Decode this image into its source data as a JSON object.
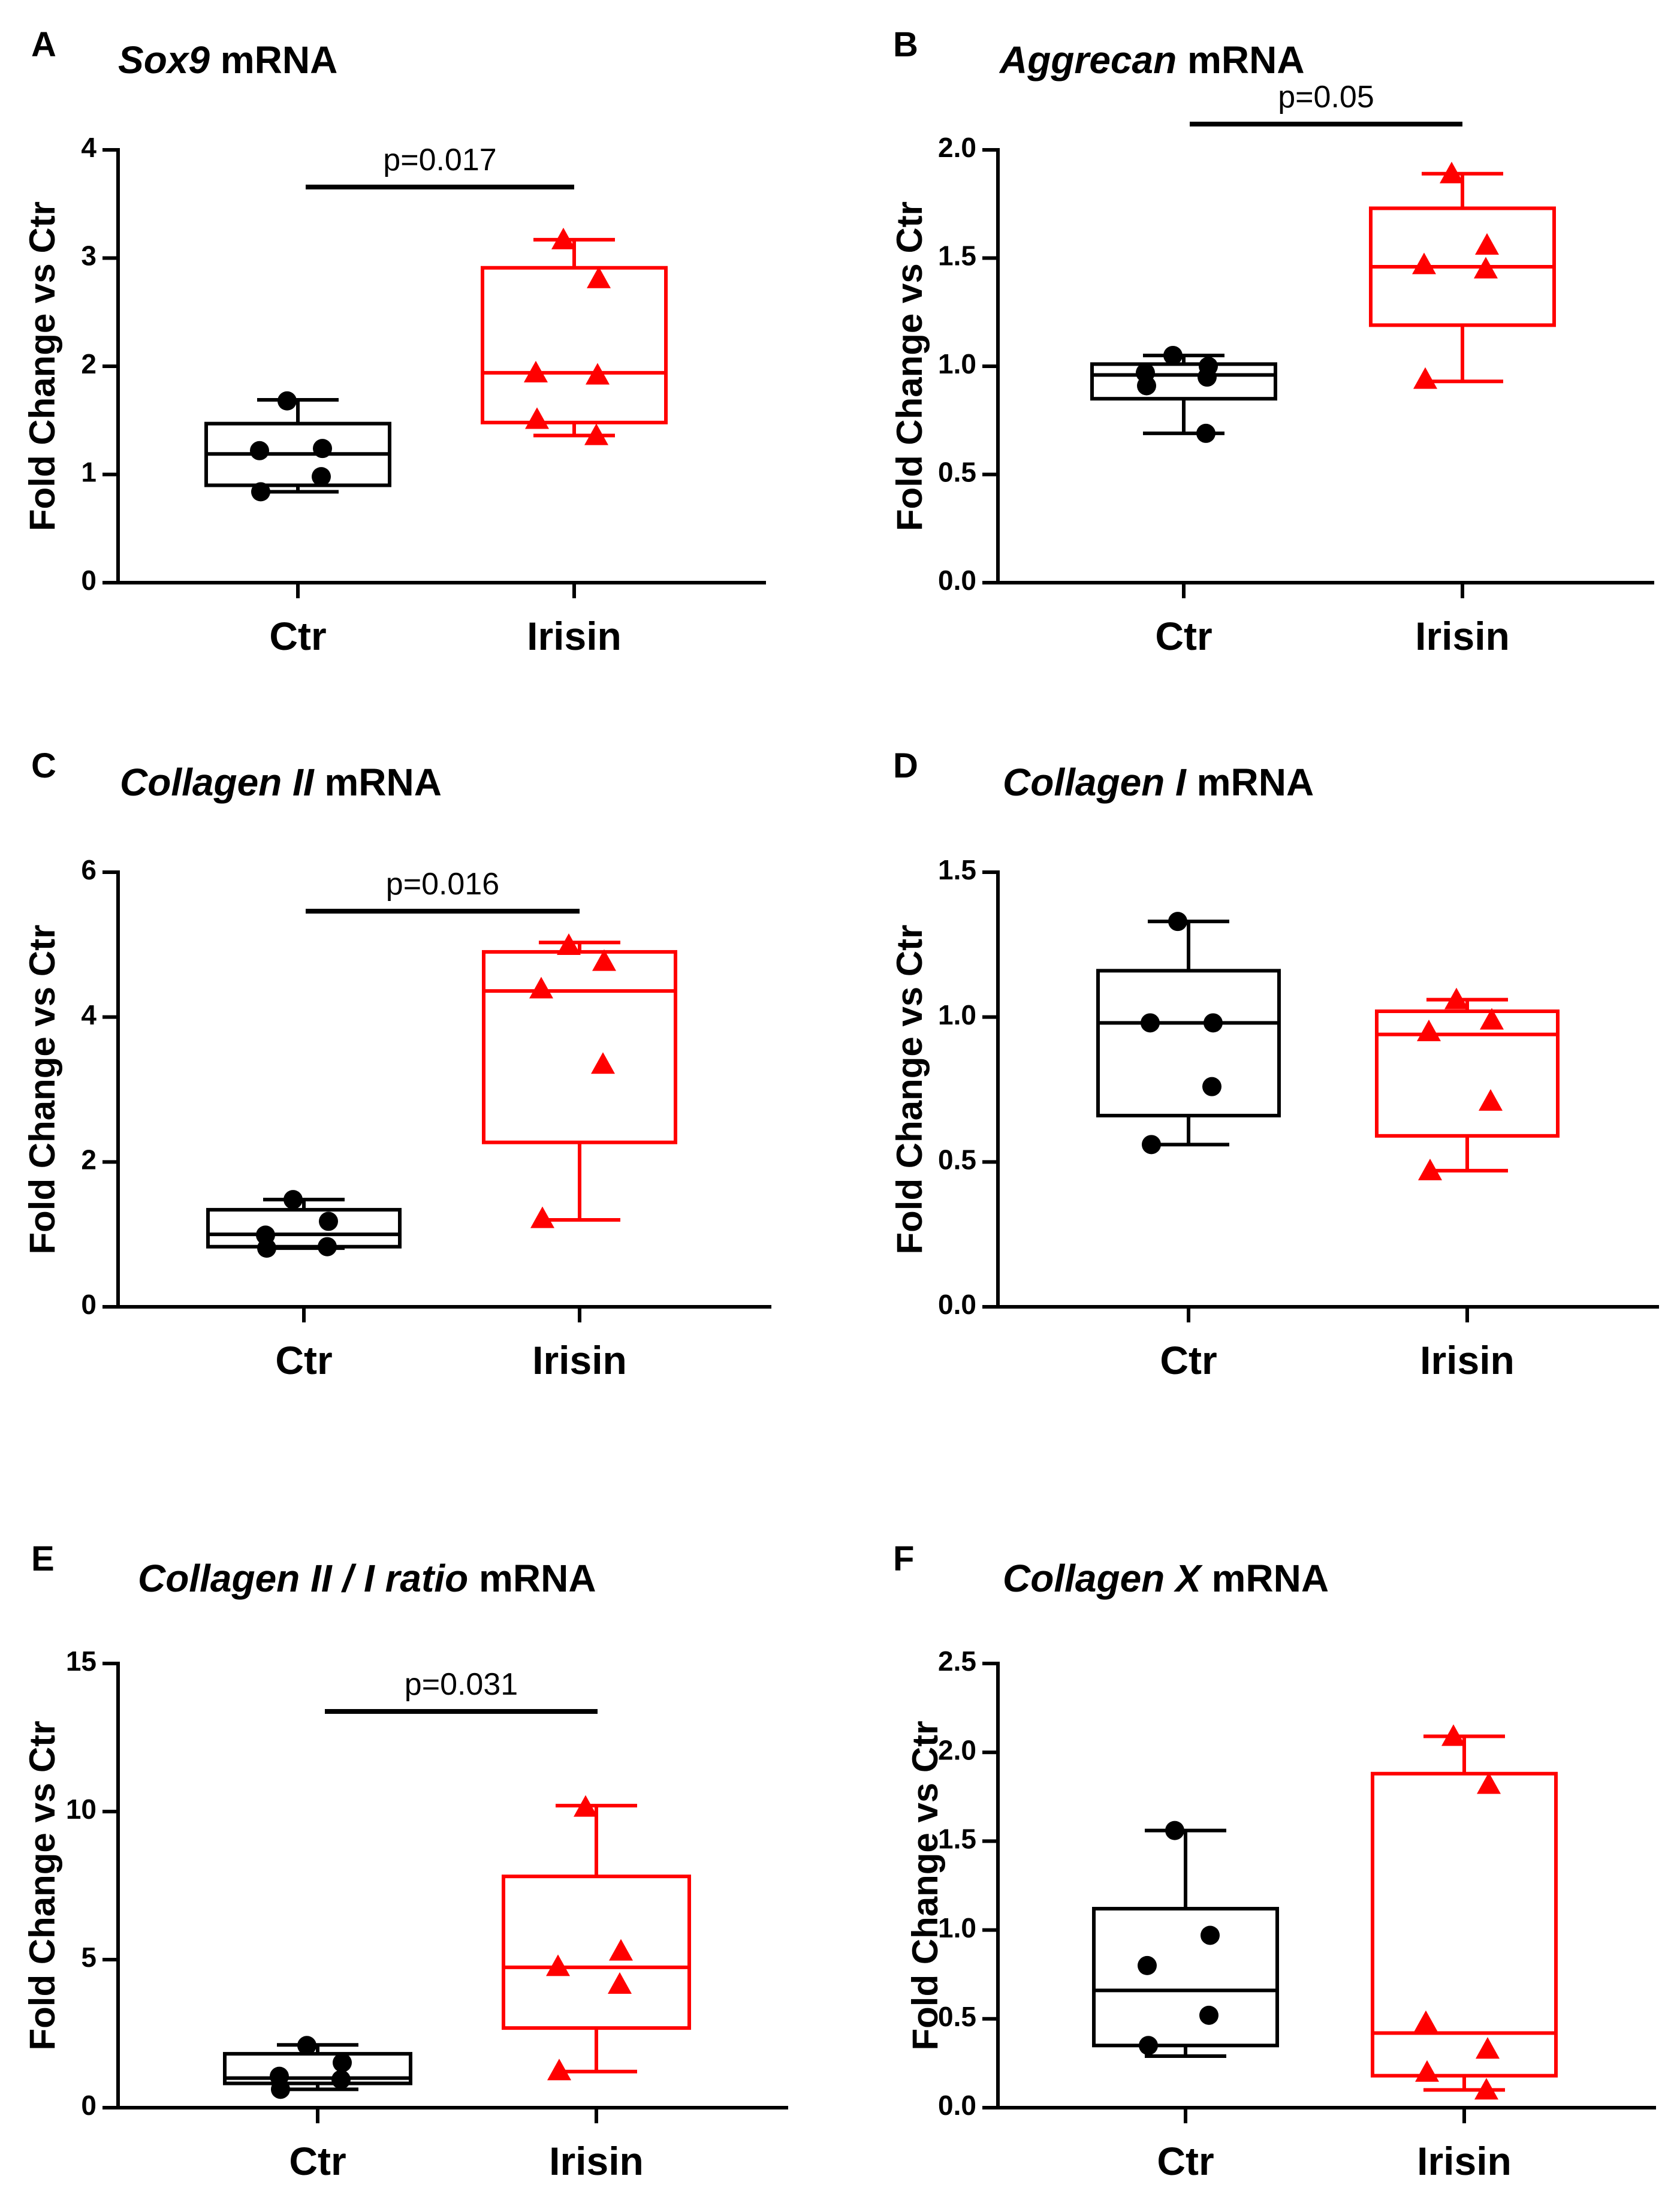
{
  "colors": {
    "ctr": "#000000",
    "irisin": "#ff0000"
  },
  "chart_data": [
    {
      "type": "box",
      "panel": "A",
      "title_gene": "Sox9",
      "title_suffix": " mRNA",
      "ylabel": "Fold Change vs Ctr",
      "ylim": [
        0,
        4
      ],
      "yticks": [
        0,
        1,
        2,
        3,
        4
      ],
      "tick_labels": [
        "0",
        "1",
        "2",
        "3",
        "4"
      ],
      "categories": [
        "Ctr",
        "Irisin"
      ],
      "pvalue": "p=0.017",
      "groups": [
        {
          "name": "Ctr",
          "marker": "circle",
          "box": {
            "min": 0.84,
            "q1": 0.9,
            "median": 1.19,
            "q3": 1.47,
            "max": 1.69
          },
          "points": [
            1.68,
            1.24,
            1.22,
            0.98,
            0.84
          ]
        },
        {
          "name": "Irisin",
          "marker": "triangle",
          "box": {
            "min": 1.36,
            "q1": 1.48,
            "median": 1.94,
            "q3": 2.91,
            "max": 3.17
          },
          "points": [
            3.17,
            2.81,
            1.94,
            1.92,
            1.51,
            1.36
          ]
        }
      ]
    },
    {
      "type": "box",
      "panel": "B",
      "title_gene": "Aggrecan",
      "title_suffix": " mRNA",
      "ylabel": "Fold Change vs Ctr",
      "ylim": [
        0,
        2
      ],
      "yticks": [
        0,
        0.5,
        1,
        1.5,
        2
      ],
      "tick_labels": [
        "0.0",
        "0.5",
        "1.0",
        "1.5",
        "2.0"
      ],
      "categories": [
        "Ctr",
        "Irisin"
      ],
      "pvalue": "p=0.05",
      "groups": [
        {
          "name": "Ctr",
          "marker": "circle",
          "box": {
            "min": 0.69,
            "q1": 0.85,
            "median": 0.96,
            "q3": 1.01,
            "max": 1.05
          },
          "points": [
            1.05,
            1.0,
            0.97,
            0.95,
            0.91,
            0.69
          ]
        },
        {
          "name": "Irisin",
          "marker": "triangle",
          "box": {
            "min": 0.93,
            "q1": 1.19,
            "median": 1.46,
            "q3": 1.73,
            "max": 1.89
          },
          "points": [
            1.89,
            1.56,
            1.47,
            1.45,
            0.94
          ]
        }
      ]
    },
    {
      "type": "box",
      "panel": "C",
      "title_gene": "Collagen II",
      "title_suffix": " mRNA",
      "ylabel": "Fold Change vs Ctr",
      "ylim": [
        0,
        6
      ],
      "yticks": [
        0,
        2,
        4,
        6
      ],
      "tick_labels": [
        "0",
        "2",
        "4",
        "6"
      ],
      "categories": [
        "Ctr",
        "Irisin"
      ],
      "pvalue": "p=0.016",
      "groups": [
        {
          "name": "Ctr",
          "marker": "circle",
          "box": {
            "min": 0.81,
            "q1": 0.83,
            "median": 1.0,
            "q3": 1.34,
            "max": 1.48
          },
          "points": [
            1.48,
            1.18,
            0.99,
            0.83,
            0.81
          ]
        },
        {
          "name": "Irisin",
          "marker": "triangle",
          "box": {
            "min": 1.2,
            "q1": 2.27,
            "median": 4.36,
            "q3": 4.9,
            "max": 5.03
          },
          "points": [
            4.99,
            4.77,
            4.39,
            3.35,
            1.22
          ]
        }
      ]
    },
    {
      "type": "box",
      "panel": "D",
      "title_gene": "Collagen I",
      "title_suffix": " mRNA",
      "ylabel": "Fold Change vs Ctr",
      "ylim": [
        0,
        1.5
      ],
      "yticks": [
        0,
        0.5,
        1,
        1.5
      ],
      "tick_labels": [
        "0.0",
        "0.5",
        "1.0",
        "1.5"
      ],
      "categories": [
        "Ctr",
        "Irisin"
      ],
      "pvalue": "",
      "groups": [
        {
          "name": "Ctr",
          "marker": "circle",
          "box": {
            "min": 0.56,
            "q1": 0.66,
            "median": 0.98,
            "q3": 1.16,
            "max": 1.33
          },
          "points": [
            1.33,
            0.98,
            0.98,
            0.76,
            0.56
          ]
        },
        {
          "name": "Irisin",
          "marker": "triangle",
          "box": {
            "min": 0.47,
            "q1": 0.59,
            "median": 0.94,
            "q3": 1.02,
            "max": 1.06
          },
          "points": [
            1.06,
            0.99,
            0.95,
            0.71,
            0.47
          ]
        }
      ]
    },
    {
      "type": "box",
      "panel": "E",
      "title_gene": "Collagen II / I ratio",
      "title_suffix": " mRNA",
      "ylabel": "Fold Change vs Ctr",
      "ylim": [
        0,
        15
      ],
      "yticks": [
        0,
        5,
        10,
        15
      ],
      "tick_labels": [
        "0",
        "5",
        "10",
        "15"
      ],
      "categories": [
        "Ctr",
        "Irisin"
      ],
      "pvalue": "p=0.031",
      "groups": [
        {
          "name": "Ctr",
          "marker": "circle",
          "box": {
            "min": 0.62,
            "q1": 0.82,
            "median": 1.0,
            "q3": 1.82,
            "max": 2.12
          },
          "points": [
            2.1,
            1.52,
            1.06,
            0.95,
            0.62
          ]
        },
        {
          "name": "Irisin",
          "marker": "triangle",
          "box": {
            "min": 1.22,
            "q1": 2.69,
            "median": 4.74,
            "q3": 7.81,
            "max": 10.2
          },
          "points": [
            10.15,
            5.29,
            4.77,
            4.17,
            1.25
          ]
        }
      ]
    },
    {
      "type": "box",
      "panel": "F",
      "title_gene": "Collagen X",
      "title_suffix": " mRNA",
      "ylabel": "Fold Change vs Ctr",
      "ylim": [
        0,
        2.5
      ],
      "yticks": [
        0,
        0.5,
        1,
        1.5,
        2,
        2.5
      ],
      "tick_labels": [
        "0.0",
        "0.5",
        "1.0",
        "1.5",
        "2.0",
        "2.5"
      ],
      "categories": [
        "Ctr",
        "Irisin"
      ],
      "pvalue": "",
      "groups": [
        {
          "name": "Ctr",
          "marker": "circle",
          "box": {
            "min": 0.29,
            "q1": 0.35,
            "median": 0.66,
            "q3": 1.12,
            "max": 1.56
          },
          "points": [
            1.56,
            0.97,
            0.8,
            0.52,
            0.35
          ]
        },
        {
          "name": "Irisin",
          "marker": "triangle",
          "box": {
            "min": 0.1,
            "q1": 0.18,
            "median": 0.42,
            "q3": 1.88,
            "max": 2.09
          },
          "points": [
            2.09,
            1.82,
            0.48,
            0.33,
            0.2,
            0.1
          ]
        }
      ]
    }
  ]
}
